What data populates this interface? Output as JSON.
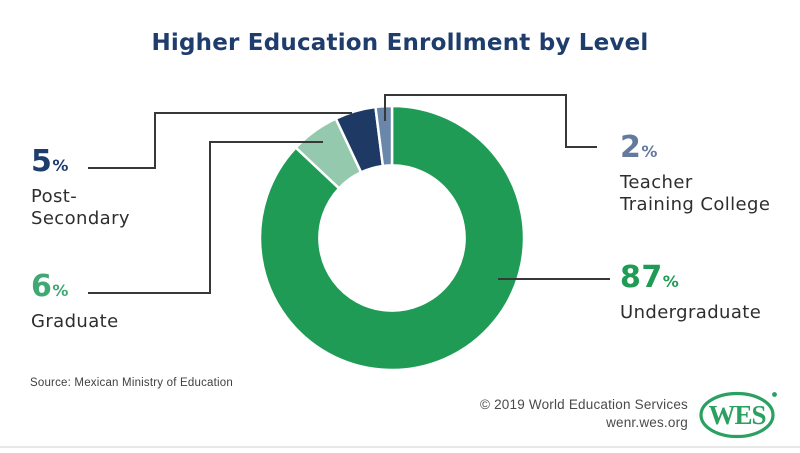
{
  "title": "Higher Education Enrollment by Level",
  "chart_data": {
    "type": "pie",
    "subtype": "donut",
    "title": "Higher Education Enrollment by Level",
    "units": "%",
    "start_angle_deg": 0,
    "direction": "clockwise",
    "inner_radius_ratio": 0.55,
    "segments": [
      {
        "label": "Undergraduate",
        "value": 87,
        "color": "#1f9b55"
      },
      {
        "label": "Graduate",
        "value": 6,
        "color": "#95c9ae"
      },
      {
        "label": "Post-Secondary",
        "value": 5,
        "color": "#1e3a64"
      },
      {
        "label": "Teacher Training College",
        "value": 2,
        "color": "#6a86aa"
      }
    ]
  },
  "callouts": {
    "post_secondary": {
      "value": "5",
      "unit": "%",
      "label": "Post-\nSecondary",
      "color": "#1e3d6d"
    },
    "graduate": {
      "value": "6",
      "unit": "%",
      "label": "Graduate",
      "color": "#3fa873"
    },
    "teacher_training": {
      "value": "2",
      "unit": "%",
      "label": "Teacher\nTraining College",
      "color": "#64799e"
    },
    "undergraduate": {
      "value": "87",
      "unit": "%",
      "label": "Undergraduate",
      "color": "#1f9b55"
    }
  },
  "footer": {
    "source": "Source: Mexican Ministry of Education",
    "copyright": "© 2019 World Education Services",
    "website": "wenr.wes.org",
    "logo_text": "WES"
  },
  "colors": {
    "title_navy": "#1e3d6d",
    "leader_line": "#383838",
    "label_text": "#2e2e2e",
    "footer_gray": "#4a4a4a",
    "logo_green": "#2aa061",
    "background": "#ffffff"
  }
}
